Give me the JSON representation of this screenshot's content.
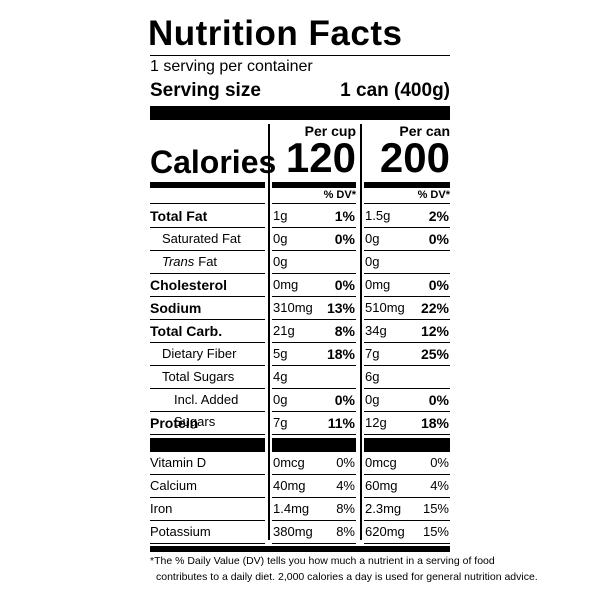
{
  "title": "Nutrition Facts",
  "servings": "1 serving per container",
  "serving_size": {
    "label": "Serving size",
    "value": "1 can (400g)"
  },
  "columns": [
    "Per cup",
    "Per can"
  ],
  "calories": {
    "label": "Calories",
    "values": [
      "120",
      "200"
    ]
  },
  "dv_header": "% DV*",
  "nutrients": [
    {
      "name": "Total Fat",
      "level": 0,
      "amounts": [
        "1g",
        "1.5g"
      ],
      "dv": [
        "1%",
        "2%"
      ]
    },
    {
      "name": "Saturated Fat",
      "level": 1,
      "amounts": [
        "0g",
        "0g"
      ],
      "dv": [
        "0%",
        "0%"
      ]
    },
    {
      "name_italic": "Trans",
      "name": "Fat",
      "level": 1,
      "amounts": [
        "0g",
        "0g"
      ],
      "dv": null
    },
    {
      "name": "Cholesterol",
      "level": 0,
      "amounts": [
        "0mg",
        "0mg"
      ],
      "dv": [
        "0%",
        "0%"
      ]
    },
    {
      "name": "Sodium",
      "level": 0,
      "amounts": [
        "310mg",
        "510mg"
      ],
      "dv": [
        "13%",
        "22%"
      ]
    },
    {
      "name": "Total Carb.",
      "level": 0,
      "amounts": [
        "21g",
        "34g"
      ],
      "dv": [
        "8%",
        "12%"
      ]
    },
    {
      "name": "Dietary Fiber",
      "level": 1,
      "amounts": [
        "5g",
        "7g"
      ],
      "dv": [
        "18%",
        "25%"
      ]
    },
    {
      "name": "Total Sugars",
      "level": 1,
      "amounts": [
        "4g",
        "6g"
      ],
      "dv": null
    },
    {
      "name": "Incl. Added Sugars",
      "level": 2,
      "amounts": [
        "0g",
        "0g"
      ],
      "dv": [
        "0%",
        "0%"
      ]
    },
    {
      "name": "Protein",
      "level": 0,
      "amounts": [
        "7g",
        "12g"
      ],
      "dv": [
        "11%",
        "18%"
      ]
    }
  ],
  "vitamins": [
    {
      "name": "Vitamin D",
      "amounts": [
        "0mcg",
        "0mcg"
      ],
      "dv": [
        "0%",
        "0%"
      ]
    },
    {
      "name": "Calcium",
      "amounts": [
        "40mg",
        "60mg"
      ],
      "dv": [
        "4%",
        "4%"
      ]
    },
    {
      "name": "Iron",
      "amounts": [
        "1.4mg",
        "2.3mg"
      ],
      "dv": [
        "8%",
        "15%"
      ]
    },
    {
      "name": "Potassium",
      "amounts": [
        "380mg",
        "620mg"
      ],
      "dv": [
        "8%",
        "15%"
      ]
    }
  ],
  "footnote": [
    "*The % Daily Value (DV) tells you how much a nutrient in a serving of food",
    "contributes to a daily diet. 2,000 calories a day is used for general nutrition advice."
  ]
}
